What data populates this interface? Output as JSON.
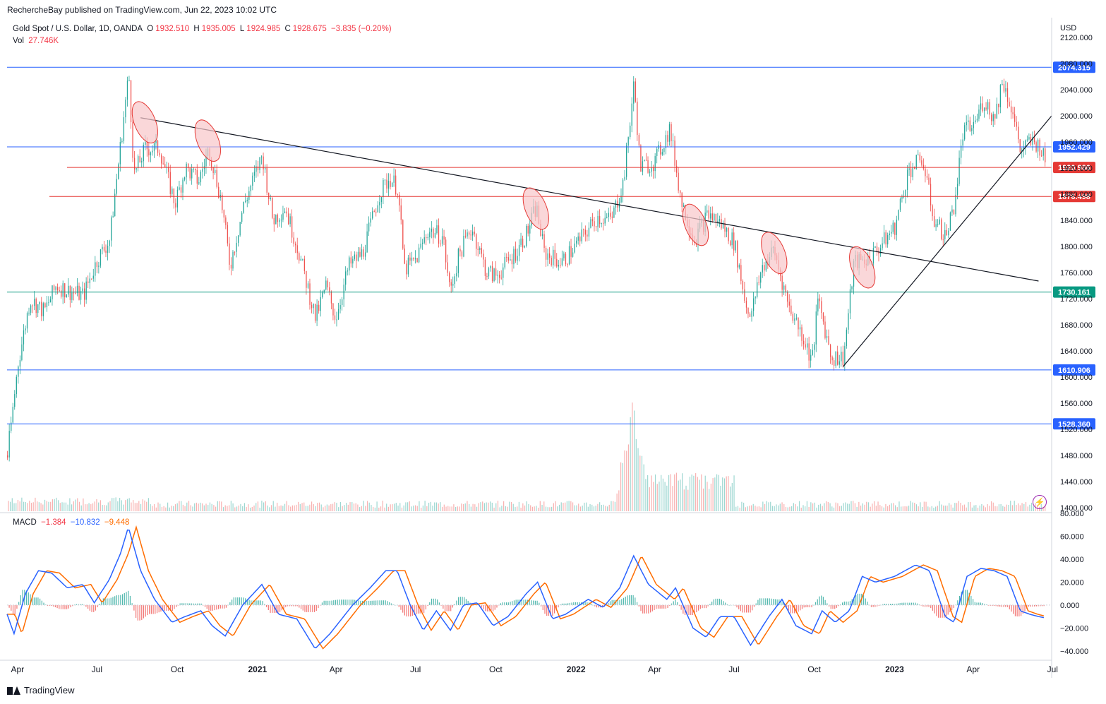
{
  "header": {
    "published": "RechercheBay published on TradingView.com, Jun 22, 2023 10:02 UTC",
    "symbol": "Gold Spot / U.S. Dollar, 1D, OANDA",
    "ohlc": [
      {
        "label": "O",
        "value": "1932.510"
      },
      {
        "label": "H",
        "value": "1935.005"
      },
      {
        "label": "L",
        "value": "1924.985"
      },
      {
        "label": "C",
        "value": "1928.675"
      }
    ],
    "change": "−3.835 (−0.20%)",
    "vol_label": "Vol",
    "vol_value": "27.746K"
  },
  "macd_legend": {
    "title": "MACD",
    "values": [
      "−1.384",
      "−10.832",
      "−9.448"
    ]
  },
  "currency": "USD",
  "brand": "TradingView",
  "colors": {
    "up": "#26a69a",
    "down": "#ef5350",
    "macd_line": "#2962ff",
    "signal_line": "#ff6d00",
    "support_blue": "#2962ff",
    "support_teal": "#089981",
    "support_red": "#e53935",
    "highlight": "#f8c6c9"
  },
  "chart_data": [
    {
      "type": "candlestick",
      "title": "Gold Spot / U.S. Dollar, 1D, OANDA",
      "ylim": [
        1400,
        2120
      ],
      "y_ticks": [
        "2120.000",
        "2080.000",
        "2040.000",
        "2000.000",
        "1960.000",
        "1920.000",
        "1880.000",
        "1840.000",
        "1800.000",
        "1760.000",
        "1720.000",
        "1680.000",
        "1640.000",
        "1600.000",
        "1560.000",
        "1520.000",
        "1480.000",
        "1440.000",
        "1400.000"
      ],
      "x_ticks": [
        "Apr",
        "Jul",
        "Oct",
        "2021",
        "Apr",
        "Jul",
        "Oct",
        "2022",
        "Apr",
        "Jul",
        "Oct",
        "2023",
        "Apr",
        "Jul"
      ],
      "x_range": [
        "2020-03-20",
        "2023-06-30"
      ],
      "close_path": [
        [
          "2020-03-20",
          1480
        ],
        [
          "2020-04-01",
          1620
        ],
        [
          "2020-04-15",
          1720
        ],
        [
          "2020-05-01",
          1700
        ],
        [
          "2020-05-15",
          1740
        ],
        [
          "2020-06-01",
          1730
        ],
        [
          "2020-06-15",
          1725
        ],
        [
          "2020-07-01",
          1780
        ],
        [
          "2020-07-15",
          1810
        ],
        [
          "2020-08-06",
          2065
        ],
        [
          "2020-08-12",
          1910
        ],
        [
          "2020-08-25",
          1950
        ],
        [
          "2020-09-10",
          1950
        ],
        [
          "2020-09-28",
          1865
        ],
        [
          "2020-10-10",
          1920
        ],
        [
          "2020-10-25",
          1900
        ],
        [
          "2020-11-06",
          1950
        ],
        [
          "2020-11-20",
          1870
        ],
        [
          "2020-11-30",
          1770
        ],
        [
          "2020-12-15",
          1860
        ],
        [
          "2021-01-06",
          1940
        ],
        [
          "2021-01-18",
          1840
        ],
        [
          "2021-02-01",
          1860
        ],
        [
          "2021-02-15",
          1800
        ],
        [
          "2021-03-08",
          1690
        ],
        [
          "2021-03-20",
          1740
        ],
        [
          "2021-03-31",
          1690
        ],
        [
          "2021-04-15",
          1770
        ],
        [
          "2021-05-01",
          1790
        ],
        [
          "2021-05-20",
          1880
        ],
        [
          "2021-06-01",
          1905
        ],
        [
          "2021-06-10",
          1890
        ],
        [
          "2021-06-18",
          1765
        ],
        [
          "2021-07-01",
          1780
        ],
        [
          "2021-07-15",
          1825
        ],
        [
          "2021-08-01",
          1815
        ],
        [
          "2021-08-09",
          1730
        ],
        [
          "2021-08-20",
          1790
        ],
        [
          "2021-09-03",
          1830
        ],
        [
          "2021-09-20",
          1760
        ],
        [
          "2021-10-01",
          1755
        ],
        [
          "2021-10-20",
          1785
        ],
        [
          "2021-11-05",
          1820
        ],
        [
          "2021-11-16",
          1860
        ],
        [
          "2021-11-25",
          1790
        ],
        [
          "2021-12-15",
          1775
        ],
        [
          "2022-01-05",
          1810
        ],
        [
          "2022-01-25",
          1845
        ],
        [
          "2022-02-10",
          1840
        ],
        [
          "2022-02-24",
          1900
        ],
        [
          "2022-03-08",
          2050
        ],
        [
          "2022-03-15",
          1920
        ],
        [
          "2022-04-01",
          1930
        ],
        [
          "2022-04-18",
          1980
        ],
        [
          "2022-05-01",
          1870
        ],
        [
          "2022-05-16",
          1810
        ],
        [
          "2022-06-01",
          1850
        ],
        [
          "2022-06-15",
          1835
        ],
        [
          "2022-07-01",
          1805
        ],
        [
          "2022-07-15",
          1705
        ],
        [
          "2022-07-21",
          1700
        ],
        [
          "2022-08-01",
          1765
        ],
        [
          "2022-08-15",
          1795
        ],
        [
          "2022-09-01",
          1710
        ],
        [
          "2022-09-15",
          1670
        ],
        [
          "2022-09-28",
          1625
        ],
        [
          "2022-10-05",
          1720
        ],
        [
          "2022-10-20",
          1630
        ],
        [
          "2022-11-03",
          1630
        ],
        [
          "2022-11-15",
          1775
        ],
        [
          "2022-12-01",
          1780
        ],
        [
          "2022-12-15",
          1800
        ],
        [
          "2023-01-01",
          1830
        ],
        [
          "2023-01-16",
          1915
        ],
        [
          "2023-02-01",
          1935
        ],
        [
          "2023-02-15",
          1840
        ],
        [
          "2023-02-28",
          1815
        ],
        [
          "2023-03-10",
          1865
        ],
        [
          "2023-03-20",
          1975
        ],
        [
          "2023-04-01",
          1985
        ],
        [
          "2023-04-13",
          2025
        ],
        [
          "2023-04-25",
          1995
        ],
        [
          "2023-05-04",
          2055
        ],
        [
          "2023-05-15",
          2010
        ],
        [
          "2023-05-25",
          1945
        ],
        [
          "2023-06-05",
          1960
        ],
        [
          "2023-06-15",
          1955
        ],
        [
          "2023-06-22",
          1929
        ]
      ],
      "price_levels": [
        {
          "label": "2074.315",
          "value": 2074.315,
          "style": "blue"
        },
        {
          "label": "1952.429",
          "value": 1952.429,
          "style": "blue"
        },
        {
          "label": "1920.986",
          "value": 1920.986,
          "style": "red"
        },
        {
          "label": "1876.498",
          "value": 1876.498,
          "style": "red"
        },
        {
          "label": "1730.161",
          "value": 1730.161,
          "style": "teal"
        },
        {
          "label": "1610.906",
          "value": 1610.906,
          "style": "blue"
        },
        {
          "label": "1528.360",
          "value": 1528.36,
          "style": "blue"
        }
      ],
      "trendlines": [
        {
          "from": [
            "2020-08-20",
            1997
          ],
          "to": [
            "2023-06-15",
            1747
          ]
        },
        {
          "from": [
            "2022-11-03",
            1616
          ],
          "to": [
            "2023-06-30",
            2000
          ]
        }
      ],
      "highlights": [
        {
          "date": "2020-08-25",
          "price": 1990
        },
        {
          "date": "2020-11-05",
          "price": 1962
        },
        {
          "date": "2021-11-16",
          "price": 1858
        },
        {
          "date": "2022-05-18",
          "price": 1833
        },
        {
          "date": "2022-08-16",
          "price": 1790
        },
        {
          "date": "2022-11-25",
          "price": 1768
        }
      ]
    },
    {
      "type": "bar",
      "title": "Vol",
      "series": [
        {
          "name": "Vol",
          "spikes": [
            [
              "2022-03-08",
              1.0
            ],
            [
              "2022-03-01",
              0.7
            ],
            [
              "2022-03-15",
              0.6
            ],
            [
              "2022-04-15",
              0.4
            ],
            [
              "2022-06-10",
              0.33
            ]
          ]
        }
      ]
    },
    {
      "type": "line",
      "title": "MACD",
      "ylim": [
        -45,
        80
      ],
      "y_ticks": [
        "80.000",
        "60.000",
        "40.000",
        "20.000",
        "0.000",
        "−20.000",
        "−40.000"
      ],
      "macd_path": [
        [
          "2020-03-20",
          -8
        ],
        [
          "2020-03-28",
          -25
        ],
        [
          "2020-04-10",
          10
        ],
        [
          "2020-04-25",
          30
        ],
        [
          "2020-05-10",
          28
        ],
        [
          "2020-05-28",
          15
        ],
        [
          "2020-06-15",
          18
        ],
        [
          "2020-06-28",
          2
        ],
        [
          "2020-07-15",
          22
        ],
        [
          "2020-07-28",
          45
        ],
        [
          "2020-08-06",
          68
        ],
        [
          "2020-08-20",
          30
        ],
        [
          "2020-09-05",
          5
        ],
        [
          "2020-09-25",
          -15
        ],
        [
          "2020-10-10",
          -10
        ],
        [
          "2020-10-28",
          -5
        ],
        [
          "2020-11-10",
          -18
        ],
        [
          "2020-11-25",
          -27
        ],
        [
          "2020-12-15",
          0
        ],
        [
          "2021-01-06",
          18
        ],
        [
          "2021-01-25",
          -8
        ],
        [
          "2021-02-15",
          -12
        ],
        [
          "2021-03-08",
          -38
        ],
        [
          "2021-03-25",
          -25
        ],
        [
          "2021-04-20",
          0
        ],
        [
          "2021-05-10",
          15
        ],
        [
          "2021-05-28",
          30
        ],
        [
          "2021-06-10",
          30
        ],
        [
          "2021-06-25",
          0
        ],
        [
          "2021-07-10",
          -22
        ],
        [
          "2021-07-25",
          -5
        ],
        [
          "2021-08-10",
          -22
        ],
        [
          "2021-08-25",
          0
        ],
        [
          "2021-09-10",
          2
        ],
        [
          "2021-09-28",
          -18
        ],
        [
          "2021-10-15",
          -10
        ],
        [
          "2021-11-05",
          10
        ],
        [
          "2021-11-18",
          20
        ],
        [
          "2021-12-05",
          -12
        ],
        [
          "2021-12-20",
          -8
        ],
        [
          "2022-01-15",
          5
        ],
        [
          "2022-02-01",
          -2
        ],
        [
          "2022-02-20",
          15
        ],
        [
          "2022-03-08",
          43
        ],
        [
          "2022-03-25",
          18
        ],
        [
          "2022-04-15",
          5
        ],
        [
          "2022-04-25",
          15
        ],
        [
          "2022-05-15",
          -20
        ],
        [
          "2022-05-30",
          -28
        ],
        [
          "2022-06-15",
          -10
        ],
        [
          "2022-07-01",
          -10
        ],
        [
          "2022-07-20",
          -35
        ],
        [
          "2022-08-10",
          -10
        ],
        [
          "2022-08-25",
          5
        ],
        [
          "2022-09-10",
          -18
        ],
        [
          "2022-09-28",
          -25
        ],
        [
          "2022-10-10",
          -5
        ],
        [
          "2022-10-25",
          -15
        ],
        [
          "2022-11-10",
          -5
        ],
        [
          "2022-11-25",
          25
        ],
        [
          "2022-12-10",
          20
        ],
        [
          "2023-01-01",
          25
        ],
        [
          "2023-01-25",
          35
        ],
        [
          "2023-02-10",
          30
        ],
        [
          "2023-02-28",
          -10
        ],
        [
          "2023-03-10",
          -15
        ],
        [
          "2023-03-25",
          25
        ],
        [
          "2023-04-10",
          32
        ],
        [
          "2023-04-25",
          30
        ],
        [
          "2023-05-10",
          25
        ],
        [
          "2023-05-25",
          -5
        ],
        [
          "2023-06-05",
          -8
        ],
        [
          "2023-06-15",
          -10
        ],
        [
          "2023-06-22",
          -11
        ]
      ],
      "signal_lag_days": 9
    }
  ]
}
